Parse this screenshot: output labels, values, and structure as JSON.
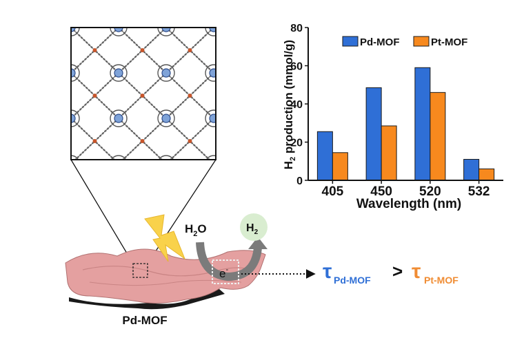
{
  "figure": {
    "mof_label": "Pd-MOF",
    "water_label": "H",
    "water_sub": "2",
    "water_tail": "O",
    "hydrogen_label": "H",
    "hydrogen_sub": "2",
    "electron_label": "e",
    "electron_sup": "-",
    "comparison": {
      "left_symbol": "τ",
      "left_sub": "Pd-MOF",
      "operator": ">",
      "right_symbol": "τ",
      "right_sub": "Pt-MOF"
    }
  },
  "colors": {
    "pd": "#2f6fd6",
    "pt": "#f7891e",
    "ribbon": "#e4a0a0",
    "bolt": "#f9d24b",
    "h2_circle": "#d9edd0",
    "arrow": "#7b7b7b",
    "comparison_left": "#2f6fd6",
    "comparison_right": "#f08c33"
  },
  "chart_data": {
    "type": "bar",
    "categories": [
      "405",
      "450",
      "520",
      "532"
    ],
    "series": [
      {
        "name": "Pd-MOF",
        "values": [
          25.5,
          48.5,
          59,
          11
        ]
      },
      {
        "name": "Pt-MOF",
        "values": [
          14.5,
          28.5,
          46,
          6
        ]
      }
    ],
    "xlabel": "Wavelength (nm)",
    "ylabel_parts": [
      "H",
      "2",
      " production (mmol/g)"
    ],
    "ylim": [
      0,
      80
    ],
    "yticks": [
      "0",
      "20",
      "40",
      "60",
      "80"
    ],
    "legend_position": "top",
    "grid": false
  }
}
